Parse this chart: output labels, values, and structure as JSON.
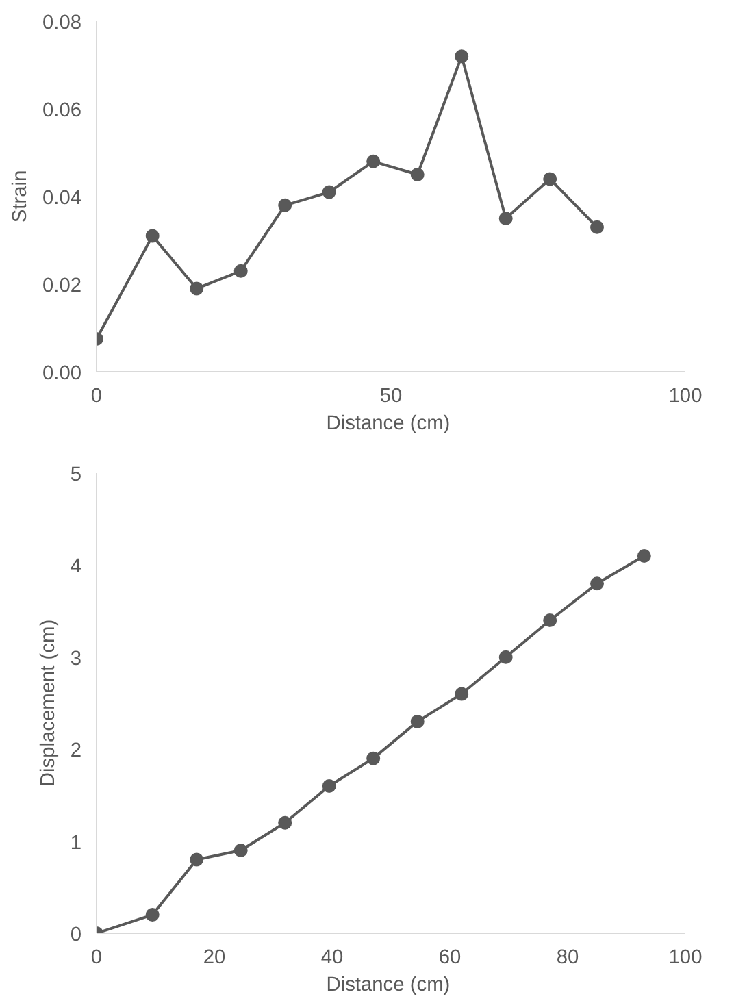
{
  "chart_data": [
    {
      "type": "line",
      "xlabel": "Distance  (cm)",
      "ylabel": "Strain",
      "x": [
        0,
        9.5,
        17,
        24.5,
        32,
        39.5,
        47,
        54.5,
        62,
        69.5,
        77,
        85
      ],
      "series": [
        {
          "color": "#595959",
          "values": [
            0.0075,
            0.031,
            0.019,
            0.023,
            0.038,
            0.041,
            0.048,
            0.045,
            0.072,
            0.035,
            0.044,
            0.033
          ]
        }
      ],
      "xlim": [
        0,
        100
      ],
      "xticks": [
        0,
        50,
        100
      ],
      "ylim": [
        0,
        0.08
      ],
      "yticks": [
        {
          "value": 0,
          "label": "0.00"
        },
        {
          "value": 0.02,
          "label": "0.02"
        },
        {
          "value": 0.04,
          "label": "0.04"
        },
        {
          "value": 0.06,
          "label": "0.06"
        },
        {
          "value": 0.08,
          "label": "0.08"
        }
      ],
      "marker": "circle",
      "grid": false
    },
    {
      "type": "line",
      "xlabel": "Distance  (cm)",
      "ylabel": "Displacement (cm)",
      "x": [
        0,
        9.5,
        17,
        24.5,
        32,
        39.5,
        47,
        54.5,
        62,
        69.5,
        77,
        85,
        93
      ],
      "series": [
        {
          "color": "#595959",
          "values": [
            0,
            0.2,
            0.8,
            0.9,
            1.2,
            1.6,
            1.9,
            2.3,
            2.6,
            3.0,
            3.4,
            3.8,
            4.1
          ]
        }
      ],
      "xlim": [
        0,
        100
      ],
      "xticks": [
        0,
        20,
        40,
        60,
        80,
        100
      ],
      "ylim": [
        0,
        5
      ],
      "yticks": [
        0,
        1,
        2,
        3,
        4,
        5
      ],
      "marker": "circle",
      "grid": false
    }
  ]
}
